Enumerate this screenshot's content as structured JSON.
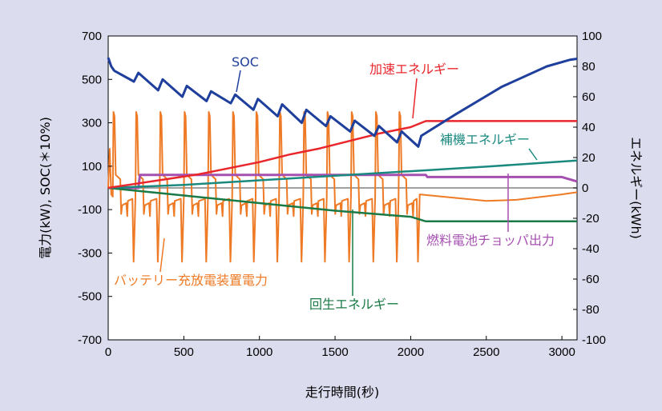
{
  "chart_data": {
    "type": "line",
    "xlabel": "走行時間(秒)",
    "ylabel": "電力(kW), SOC(＊10%)",
    "y2label": "エネルギー(kWh)",
    "xlim": [
      0,
      3100
    ],
    "ylim": [
      -700,
      700
    ],
    "y2lim": [
      -100,
      100
    ],
    "xticks": [
      "0",
      "500",
      "1000",
      "1500",
      "2000",
      "2500",
      "3000"
    ],
    "yticks": [
      "700",
      "500",
      "300",
      "100",
      "-100",
      "-300",
      "-500",
      "-700"
    ],
    "y2ticks": [
      "100",
      "80",
      "60",
      "40",
      "20",
      "0",
      "-20",
      "-40",
      "-60",
      "-80",
      "-100"
    ],
    "grid": false,
    "colors": {
      "background": "#dcdcef",
      "soc": "#1f3f9c",
      "accel": "#e8262b",
      "aux": "#1a8a80",
      "regen": "#1a7a45",
      "fuelcell": "#a550b0",
      "battery": "#ee7a25",
      "zero": "#808080"
    },
    "series": [
      {
        "name": "SOC",
        "axis": "left",
        "color": "#1f3f9c",
        "x": [
          0,
          20,
          40,
          170,
          200,
          330,
          360,
          490,
          520,
          650,
          680,
          810,
          840,
          960,
          990,
          1120,
          1150,
          1280,
          1310,
          1440,
          1470,
          1600,
          1630,
          1760,
          1790,
          1910,
          1940,
          2050,
          2070,
          2300,
          2600,
          2900,
          3050,
          3100
        ],
        "values": [
          600,
          560,
          540,
          490,
          530,
          450,
          500,
          420,
          470,
          400,
          445,
          390,
          430,
          360,
          410,
          330,
          385,
          300,
          360,
          285,
          330,
          260,
          310,
          240,
          285,
          210,
          260,
          190,
          240,
          340,
          465,
          560,
          590,
          595
        ]
      },
      {
        "name": "加速エネルギー",
        "axis": "right",
        "color": "#e8262b",
        "x": [
          0,
          200,
          400,
          600,
          800,
          1000,
          1200,
          1400,
          1600,
          1800,
          2000,
          2100,
          2500,
          3100
        ],
        "values": [
          0,
          3,
          6,
          9,
          13,
          17,
          22,
          26,
          31,
          36,
          40,
          44,
          44,
          44
        ]
      },
      {
        "name": "補機エネルギー",
        "axis": "right",
        "color": "#1a8a80",
        "x": [
          0,
          500,
          1000,
          1500,
          2000,
          2500,
          3100
        ],
        "values": [
          0,
          2,
          5,
          8,
          11,
          14,
          18
        ]
      },
      {
        "name": "回生エネルギー",
        "axis": "right",
        "color": "#1a7a45",
        "x": [
          0,
          500,
          1000,
          1500,
          2000,
          2100,
          2500,
          3100
        ],
        "values": [
          0,
          -5,
          -10,
          -15,
          -19,
          -22,
          -22,
          -22
        ]
      },
      {
        "name": "燃料電池チョッパ出力",
        "axis": "left",
        "color": "#a550b0",
        "x": [
          0,
          200,
          210,
          2100,
          2110,
          3000,
          3100
        ],
        "values": [
          0,
          0,
          60,
          60,
          50,
          50,
          30
        ]
      },
      {
        "name": "バッテリー充放電装置電力",
        "axis": "left",
        "color": "#ee7a25",
        "cycle_starts": [
          30,
          180,
          340,
          500,
          660,
          820,
          975,
          1130,
          1290,
          1445,
          1605,
          1765,
          1920
        ],
        "peak": 350,
        "trough": -340,
        "tail_x": [
          2060,
          2500,
          2700,
          3000,
          3100
        ],
        "tail_values": [
          -30,
          -60,
          -55,
          -30,
          -20
        ]
      }
    ],
    "annotations": [
      {
        "label": "SOC",
        "color": "#1f3f9c"
      },
      {
        "label": "加速エネルギー",
        "color": "#e8262b"
      },
      {
        "label": "補機エネルギー",
        "color": "#1a8a80"
      },
      {
        "label": "燃料電池チョッパ出力",
        "color": "#a550b0"
      },
      {
        "label": "バッテリー充放電装置電力",
        "color": "#ee7a25"
      },
      {
        "label": "回生エネルギー",
        "color": "#1a7a45"
      }
    ]
  }
}
